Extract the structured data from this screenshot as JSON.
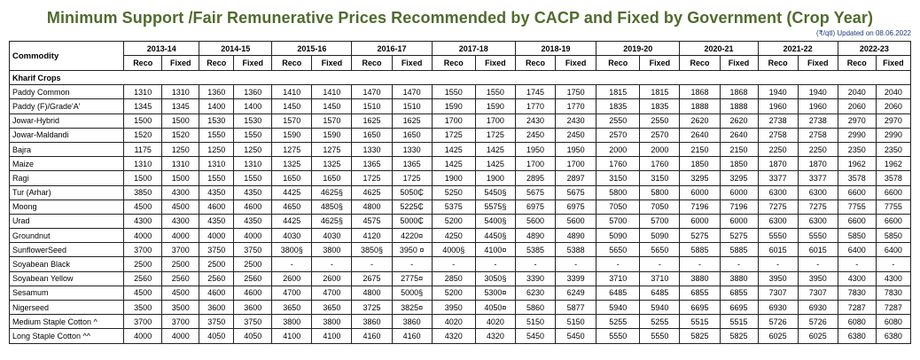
{
  "title": "Minimum Support /Fair Remunerative Prices Recommended by CACP and Fixed by Government (Crop Year)",
  "updated_note": "(₹/qtl) Updated on 08.06.2022",
  "table": {
    "commodity_header": "Commodity",
    "years": [
      "2013-14",
      "2014-15",
      "2015-16",
      "2016-17",
      "2017-18",
      "2018-19",
      "2019-20",
      "2020-21",
      "2021-22",
      "2022-23"
    ],
    "reco_label": "Reco",
    "fixed_label": "Fixed",
    "section_label": "Kharif Crops",
    "rows": [
      {
        "name": "Paddy Common",
        "values": [
          "1310",
          "1310",
          "1360",
          "1360",
          "1410",
          "1410",
          "1470",
          "1470",
          "1550",
          "1550",
          "1745",
          "1750",
          "1815",
          "1815",
          "1868",
          "1868",
          "1940",
          "1940",
          "2040",
          "2040"
        ]
      },
      {
        "name": "Paddy (F)/Grade'A'",
        "values": [
          "1345",
          "1345",
          "1400",
          "1400",
          "1450",
          "1450",
          "1510",
          "1510",
          "1590",
          "1590",
          "1770",
          "1770",
          "1835",
          "1835",
          "1888",
          "1888",
          "1960",
          "1960",
          "2060",
          "2060"
        ]
      },
      {
        "name": "Jowar-Hybrid",
        "values": [
          "1500",
          "1500",
          "1530",
          "1530",
          "1570",
          "1570",
          "1625",
          "1625",
          "1700",
          "1700",
          "2430",
          "2430",
          "2550",
          "2550",
          "2620",
          "2620",
          "2738",
          "2738",
          "2970",
          "2970"
        ]
      },
      {
        "name": "Jowar-Maldandi",
        "values": [
          "1520",
          "1520",
          "1550",
          "1550",
          "1590",
          "1590",
          "1650",
          "1650",
          "1725",
          "1725",
          "2450",
          "2450",
          "2570",
          "2570",
          "2640",
          "2640",
          "2758",
          "2758",
          "2990",
          "2990"
        ]
      },
      {
        "name": "Bajra",
        "values": [
          "1175",
          "1250",
          "1250",
          "1250",
          "1275",
          "1275",
          "1330",
          "1330",
          "1425",
          "1425",
          "1950",
          "1950",
          "2000",
          "2000",
          "2150",
          "2150",
          "2250",
          "2250",
          "2350",
          "2350"
        ]
      },
      {
        "name": "Maize",
        "values": [
          "1310",
          "1310",
          "1310",
          "1310",
          "1325",
          "1325",
          "1365",
          "1365",
          "1425",
          "1425",
          "1700",
          "1700",
          "1760",
          "1760",
          "1850",
          "1850",
          "1870",
          "1870",
          "1962",
          "1962"
        ]
      },
      {
        "name": "Ragi",
        "values": [
          "1500",
          "1500",
          "1550",
          "1550",
          "1650",
          "1650",
          "1725",
          "1725",
          "1900",
          "1900",
          "2895",
          "2897",
          "3150",
          "3150",
          "3295",
          "3295",
          "3377",
          "3377",
          "3578",
          "3578"
        ]
      },
      {
        "name": "Tur (Arhar)",
        "values": [
          "3850",
          "4300",
          "4350",
          "4350",
          "4425",
          "4625§",
          "4625",
          "5050₵",
          "5250",
          "5450§",
          "5675",
          "5675",
          "5800",
          "5800",
          "6000",
          "6000",
          "6300",
          "6300",
          "6600",
          "6600"
        ]
      },
      {
        "name": "Moong",
        "values": [
          "4500",
          "4500",
          "4600",
          "4600",
          "4650",
          "4850§",
          "4800",
          "5225₵",
          "5375",
          "5575§",
          "6975",
          "6975",
          "7050",
          "7050",
          "7196",
          "7196",
          "7275",
          "7275",
          "7755",
          "7755"
        ]
      },
      {
        "name": "Urad",
        "values": [
          "4300",
          "4300",
          "4350",
          "4350",
          "4425",
          "4625§",
          "4575",
          "5000₵",
          "5200",
          "5400§",
          "5600",
          "5600",
          "5700",
          "5700",
          "6000",
          "6000",
          "6300",
          "6300",
          "6600",
          "6600"
        ]
      },
      {
        "name": "Groundnut",
        "values": [
          "4000",
          "4000",
          "4000",
          "4000",
          "4030",
          "4030",
          "4120",
          "4220¤",
          "4250",
          "4450§",
          "4890",
          "4890",
          "5090",
          "5090",
          "5275",
          "5275",
          "5550",
          "5550",
          "5850",
          "5850"
        ]
      },
      {
        "name": "SunflowerSeed",
        "values": [
          "3700",
          "3700",
          "3750",
          "3750",
          "3800§",
          "3800",
          "3850§",
          "3950 ¤",
          "4000§",
          "4100¤",
          "5385",
          "5388",
          "5650",
          "5650",
          "5885",
          "5885",
          "6015",
          "6015",
          "6400",
          "6400"
        ]
      },
      {
        "name": "Soyabean Black",
        "values": [
          "2500",
          "2500",
          "2500",
          "2500",
          "-",
          "-",
          "-",
          "-",
          "-",
          "-",
          "-",
          "-",
          "-",
          "-",
          "-",
          "-",
          "-",
          "-",
          "-",
          "-"
        ]
      },
      {
        "name": "Soyabean Yellow",
        "values": [
          "2560",
          "2560",
          "2560",
          "2560",
          "2600",
          "2600",
          "2675",
          "2775¤",
          "2850",
          "3050§",
          "3390",
          "3399",
          "3710",
          "3710",
          "3880",
          "3880",
          "3950",
          "3950",
          "4300",
          "4300"
        ]
      },
      {
        "name": "Sesamum",
        "values": [
          "4500",
          "4500",
          "4600",
          "4600",
          "4700",
          "4700",
          "4800",
          "5000§",
          "5200",
          "5300¤",
          "6230",
          "6249",
          "6485",
          "6485",
          "6855",
          "6855",
          "7307",
          "7307",
          "7830",
          "7830"
        ]
      },
      {
        "name": "Nigerseed",
        "values": [
          "3500",
          "3500",
          "3600",
          "3600",
          "3650",
          "3650",
          "3725",
          "3825¤",
          "3950",
          "4050¤",
          "5860",
          "5877",
          "5940",
          "5940",
          "6695",
          "6695",
          "6930",
          "6930",
          "7287",
          "7287"
        ]
      },
      {
        "name": "Medium Staple Cotton ^",
        "values": [
          "3700",
          "3700",
          "3750",
          "3750",
          "3800",
          "3800",
          "3860",
          "3860",
          "4020",
          "4020",
          "5150",
          "5150",
          "5255",
          "5255",
          "5515",
          "5515",
          "5726",
          "5726",
          "6080",
          "6080"
        ]
      },
      {
        "name": "Long Staple Cotton ^^",
        "values": [
          "4000",
          "4000",
          "4050",
          "4050",
          "4100",
          "4100",
          "4160",
          "4160",
          "4320",
          "4320",
          "5450",
          "5450",
          "5550",
          "5550",
          "5825",
          "5825",
          "6025",
          "6025",
          "6380",
          "6380"
        ]
      }
    ]
  }
}
